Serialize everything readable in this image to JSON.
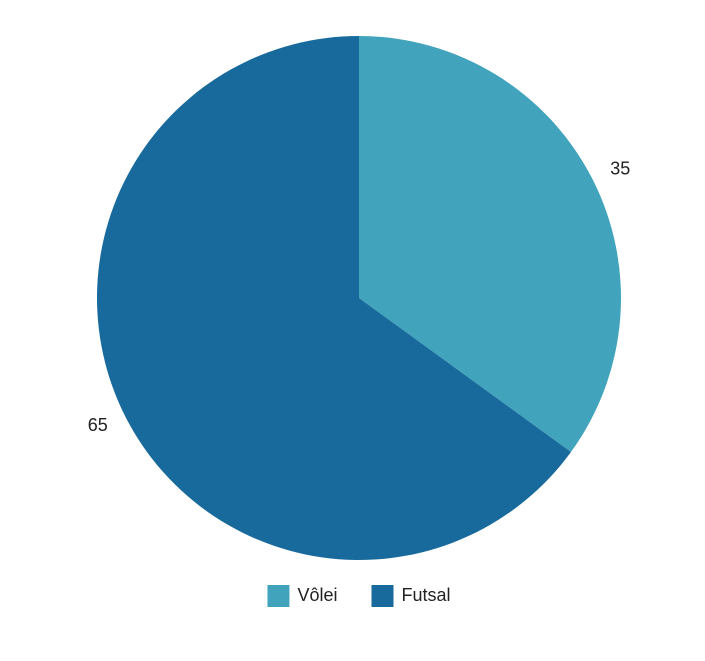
{
  "chart_data": {
    "type": "pie",
    "categories": [
      "Vôlei",
      "Futsal"
    ],
    "values": [
      35,
      65
    ],
    "colors": [
      "#41a3bc",
      "#186a9c"
    ],
    "data_labels": [
      "35",
      "65"
    ],
    "legend": {
      "placement": "bottom",
      "entries": [
        "Vôlei",
        "Futsal"
      ]
    }
  }
}
